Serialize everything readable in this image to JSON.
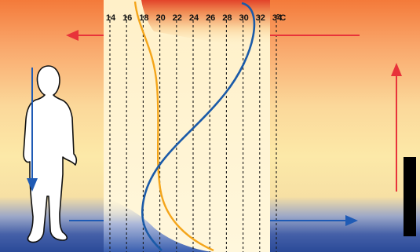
{
  "temperature_scale": {
    "ticks": [
      "14",
      "16",
      "18",
      "20",
      "22",
      "24",
      "26",
      "28",
      "30",
      "32",
      "34"
    ],
    "unit": "°C"
  },
  "colors": {
    "warm_top": "#f27a3c",
    "mid_yellow": "#fce6a0",
    "cool_bottom": "#2a4d9a",
    "band_fill": "#fff4cf",
    "band_top": "#e24b2c",
    "band_bottom": "#3a5fb0",
    "profile_orange": "#f4a51a",
    "profile_blue": "#1a5aa8",
    "arrow_red": "#e8333a",
    "arrow_blue": "#1f5bb5",
    "figure_fill": "#ffffff",
    "figure_outline": "#111111",
    "level_bar": "#000000"
  },
  "icons": {
    "person": "standing-person-icon",
    "level_bar": "black-bar"
  }
}
